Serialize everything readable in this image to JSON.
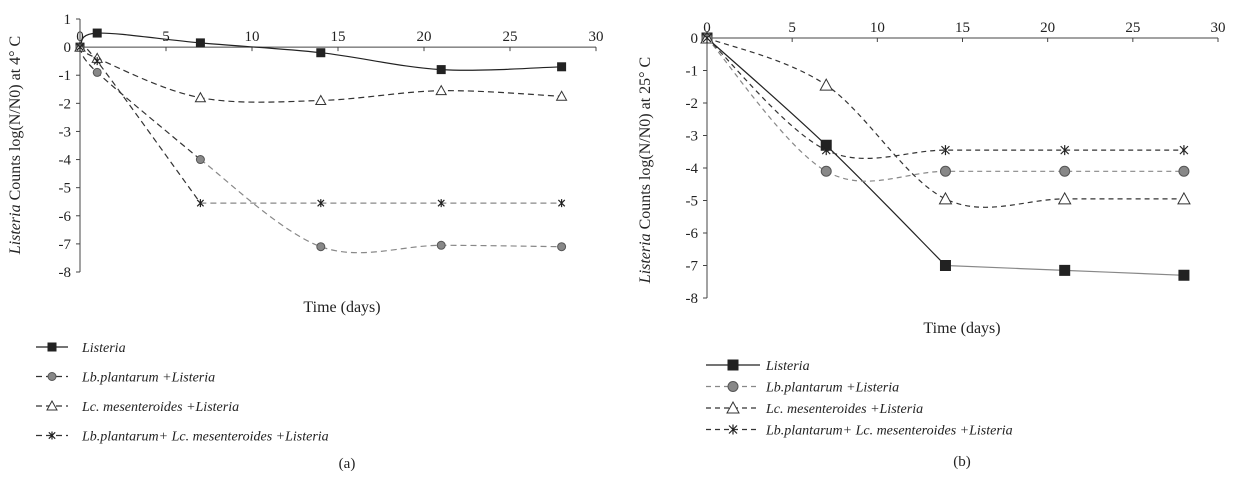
{
  "chart_data": [
    {
      "type": "line",
      "panel_label": "(a)",
      "xlabel": "Time (days)",
      "ylabel_italic": "Listeria",
      "ylabel_rest": " Counts log(N/N0) at 4° C",
      "xlim": [
        0,
        30
      ],
      "ylim": [
        -8,
        1
      ],
      "xticks": [
        "0",
        "5",
        "10",
        "15",
        "20",
        "25",
        "30"
      ],
      "yticks": [
        "1",
        "0",
        "-1",
        "-2",
        "-3",
        "-4",
        "-5",
        "-6",
        "-7",
        "-8"
      ],
      "series": [
        {
          "name": "Listeria",
          "marker": "square",
          "dash": "solid",
          "x": [
            0,
            1,
            7,
            14,
            21,
            28
          ],
          "y": [
            0,
            0.5,
            0.15,
            -0.2,
            -0.8,
            -0.7
          ]
        },
        {
          "name": "Lb.plantarum +Listeria",
          "marker": "circle",
          "dash": "dashed",
          "x": [
            0,
            1,
            7,
            14,
            21,
            28
          ],
          "y": [
            0,
            -0.9,
            -4.0,
            -7.1,
            -7.05,
            -7.1
          ]
        },
        {
          "name": "Lc. mesenteroides +Listeria",
          "marker": "triangle",
          "dash": "dashed",
          "x": [
            0,
            1,
            7,
            14,
            21,
            28
          ],
          "y": [
            0,
            -0.4,
            -1.8,
            -1.9,
            -1.55,
            -1.75
          ]
        },
        {
          "name": "Lb.plantarum+ Lc. mesenteroides +Listeria",
          "marker": "star",
          "dash": "dashed",
          "x": [
            0,
            1,
            7,
            14,
            21,
            28
          ],
          "y": [
            0,
            -0.5,
            -5.55,
            -5.55,
            -5.55,
            -5.55
          ]
        }
      ]
    },
    {
      "type": "line",
      "panel_label": "(b)",
      "xlabel": "Time (days)",
      "ylabel_italic": "Listeria",
      "ylabel_rest": " Counts log(N/N0) at 25° C",
      "xlim": [
        0,
        30
      ],
      "ylim": [
        -8,
        0
      ],
      "xticks": [
        "0",
        "5",
        "10",
        "15",
        "20",
        "25",
        "30"
      ],
      "yticks": [
        "0",
        "-1",
        "-2",
        "-3",
        "-4",
        "-5",
        "-6",
        "-7",
        "-8"
      ],
      "series": [
        {
          "name": "Listeria",
          "marker": "square",
          "dash": "solid",
          "x": [
            0,
            7,
            14,
            21,
            28
          ],
          "y": [
            0,
            -3.3,
            -7.0,
            -7.15,
            -7.3
          ]
        },
        {
          "name": "Lb.plantarum +Listeria",
          "marker": "circle",
          "dash": "dashed",
          "x": [
            0,
            7,
            14,
            21,
            28
          ],
          "y": [
            0,
            -4.1,
            -4.1,
            -4.1,
            -4.1
          ]
        },
        {
          "name": "Lc. mesenteroides +Listeria",
          "marker": "triangle",
          "dash": "dashed",
          "x": [
            0,
            7,
            14,
            21,
            28
          ],
          "y": [
            0,
            -1.45,
            -4.95,
            -4.95,
            -4.95
          ]
        },
        {
          "name": "Lb.plantarum+ Lc. mesenteroides +Listeria",
          "marker": "star",
          "dash": "dashed",
          "x": [
            0,
            7,
            14,
            21,
            28
          ],
          "y": [
            0,
            -3.45,
            -3.45,
            -3.45,
            -3.45
          ]
        }
      ]
    }
  ]
}
